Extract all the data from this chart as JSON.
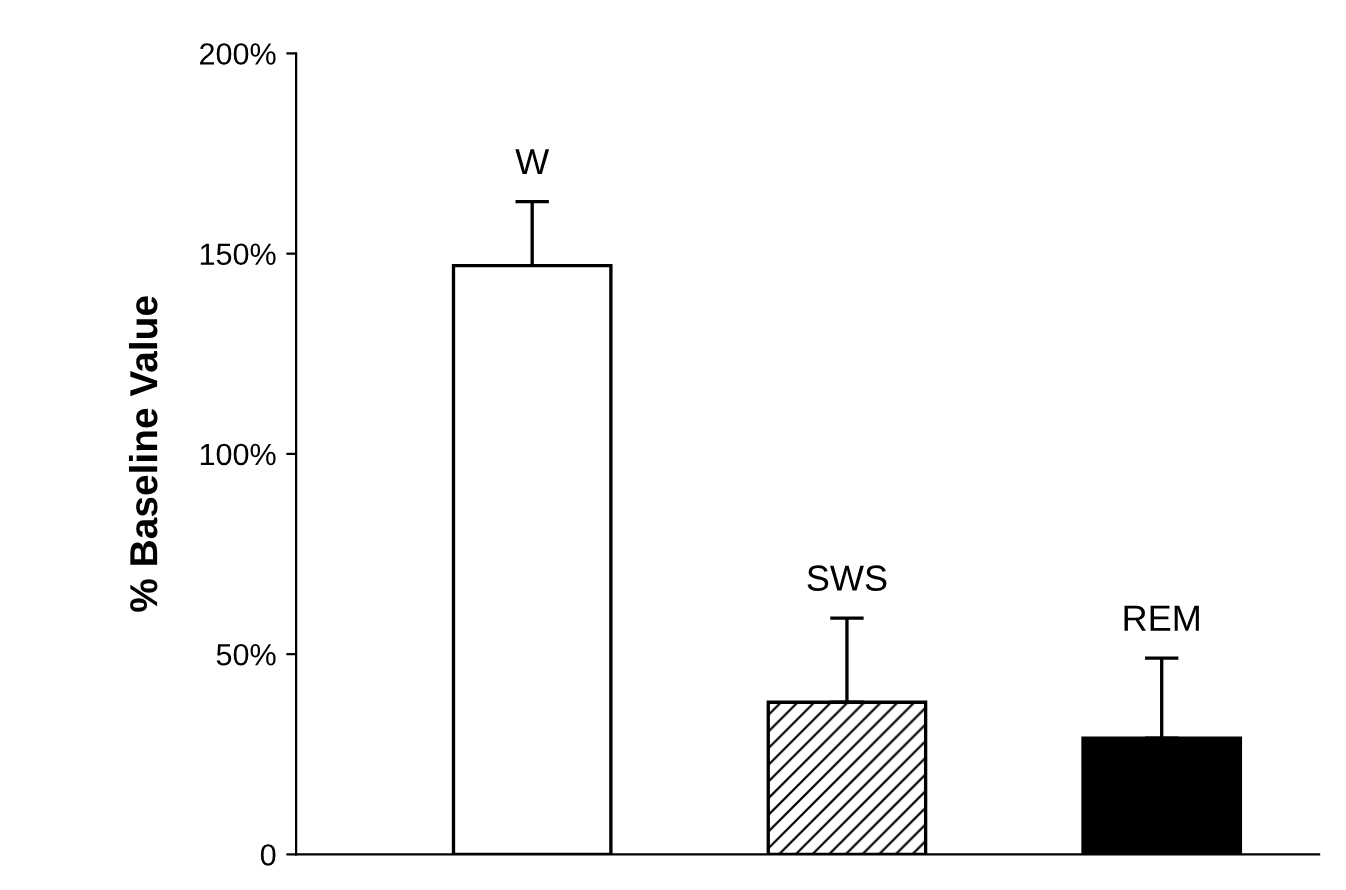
{
  "chart_data": {
    "type": "bar",
    "ylabel": "% Baseline Value",
    "categories": [
      "W",
      "SWS",
      "REM"
    ],
    "values": [
      147,
      38,
      29
    ],
    "colors": [
      "#ffffff",
      "#000000",
      "#000000"
    ],
    "errors": [
      [
        147,
        163
      ],
      [
        38,
        59
      ],
      [
        29,
        49
      ]
    ],
    "ylim": [
      0,
      200
    ],
    "yticks": [
      0,
      {
        "value": 50,
        "label": "50%"
      },
      {
        "value": 100,
        "label": "100%"
      },
      {
        "value": 150,
        "label": "150%"
      },
      {
        "value": 200,
        "label": "200%"
      }
    ],
    "grid": false,
    "legend": false
  }
}
